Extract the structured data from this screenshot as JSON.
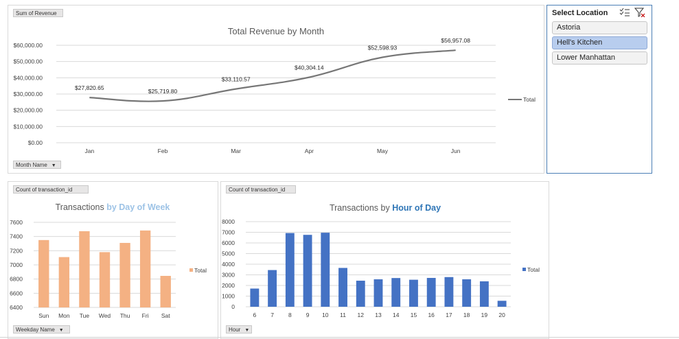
{
  "slicer": {
    "title": "Select Location",
    "items": [
      {
        "label": "Astoria",
        "selected": false
      },
      {
        "label": "Hell's Kitchen",
        "selected": true
      },
      {
        "label": "Lower Manhattan",
        "selected": false
      }
    ],
    "accent_color": "#4a7eb5"
  },
  "buttons": {
    "revenue_field": "Sum of Revenue",
    "month_field": "Month Name",
    "dow_count_field": "Count of transaction_id",
    "dow_field": "Weekday Name",
    "hour_count_field": "Count of transaction_id",
    "hour_field": "Hour"
  },
  "chart_data": [
    {
      "type": "line",
      "title": "Total Revenue by Month",
      "categories": [
        "Jan",
        "Feb",
        "Mar",
        "Apr",
        "May",
        "Jun"
      ],
      "series": [
        {
          "name": "Total",
          "values": [
            27820.65,
            25719.8,
            33110.57,
            40304.14,
            52598.93,
            56957.08
          ],
          "labels": [
            "$27,820.65",
            "$25,719.80",
            "$33,110.57",
            "$40,304.14",
            "$52,598.93",
            "$56,957.08"
          ]
        }
      ],
      "yticks": [
        "$0.00",
        "$10,000.00",
        "$20,000.00",
        "$30,000.00",
        "$40,000.00",
        "$50,000.00",
        "$60,000.00"
      ],
      "ylim": [
        0,
        60000
      ],
      "grid": true,
      "legend": "right",
      "color": "#767676"
    },
    {
      "type": "bar",
      "title": "Transactions",
      "title_highlight": "by Day of Week",
      "highlight_color": "#9dc3e6",
      "categories": [
        "Sun",
        "Mon",
        "Tue",
        "Wed",
        "Thu",
        "Fri",
        "Sat"
      ],
      "series": [
        {
          "name": "Total",
          "values": [
            7350,
            7110,
            7475,
            7180,
            7310,
            7485,
            6845
          ]
        }
      ],
      "yticks": [
        "6400",
        "6600",
        "6800",
        "7000",
        "7200",
        "7400",
        "7600"
      ],
      "ylim": [
        6400,
        7600
      ],
      "grid": true,
      "legend": "right",
      "color": "#f4b183"
    },
    {
      "type": "bar",
      "title": "Transactions by",
      "title_highlight": "Hour of Day",
      "highlight_color": "#2e75b6",
      "categories": [
        "6",
        "7",
        "8",
        "9",
        "10",
        "11",
        "12",
        "13",
        "14",
        "15",
        "16",
        "17",
        "18",
        "19",
        "20"
      ],
      "series": [
        {
          "name": "Total",
          "values": [
            1710,
            3450,
            6930,
            6760,
            6960,
            3650,
            2450,
            2580,
            2700,
            2540,
            2710,
            2790,
            2580,
            2390,
            560
          ]
        }
      ],
      "yticks": [
        "0",
        "1000",
        "2000",
        "3000",
        "4000",
        "5000",
        "6000",
        "7000",
        "8000"
      ],
      "ylim": [
        0,
        8000
      ],
      "grid": true,
      "legend": "right",
      "color": "#4472c4"
    }
  ]
}
